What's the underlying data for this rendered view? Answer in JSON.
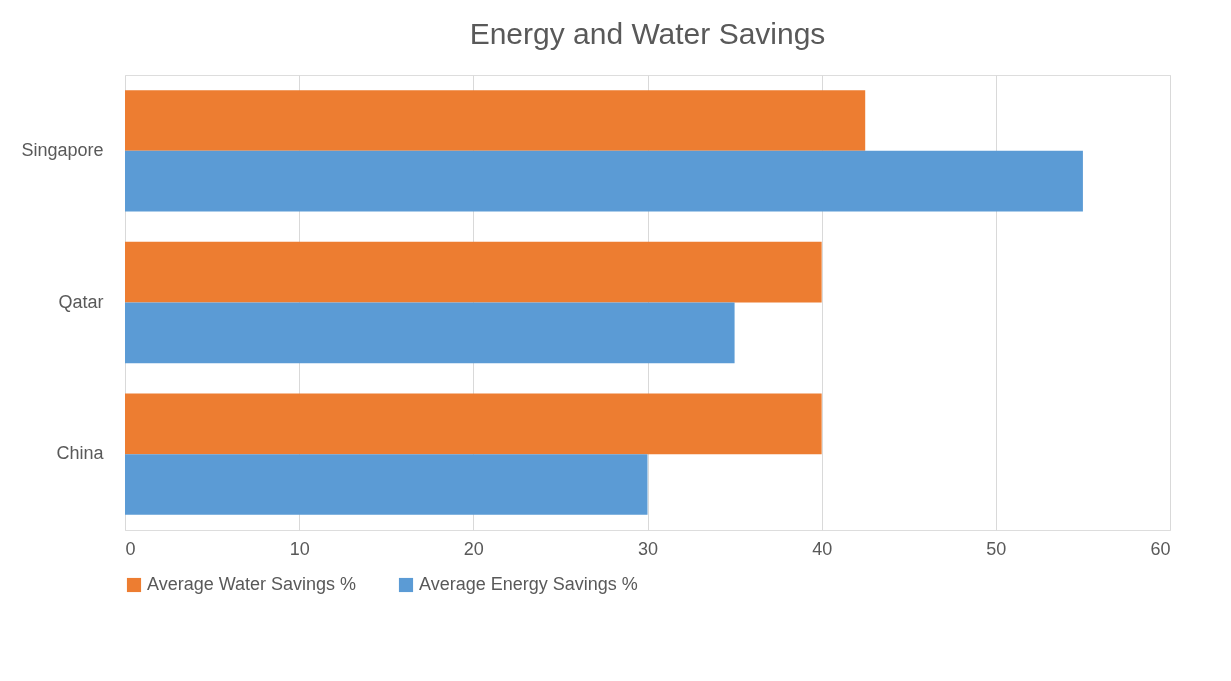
{
  "chart_data": {
    "type": "bar",
    "orientation": "horizontal",
    "title": "Energy and Water Savings",
    "categories": [
      "Singapore",
      "Qatar",
      "China"
    ],
    "series": [
      {
        "name": "Average Water Savings %",
        "color": "#ed7d31",
        "values": [
          42.5,
          40,
          40
        ]
      },
      {
        "name": "Average Energy Savings %",
        "color": "#5b9bd5",
        "values": [
          55,
          35,
          30
        ]
      }
    ],
    "xlim": [
      0,
      60
    ],
    "xticks": [
      0,
      10,
      20,
      30,
      40,
      50,
      60
    ],
    "grid": "x",
    "legend": "bottom"
  }
}
